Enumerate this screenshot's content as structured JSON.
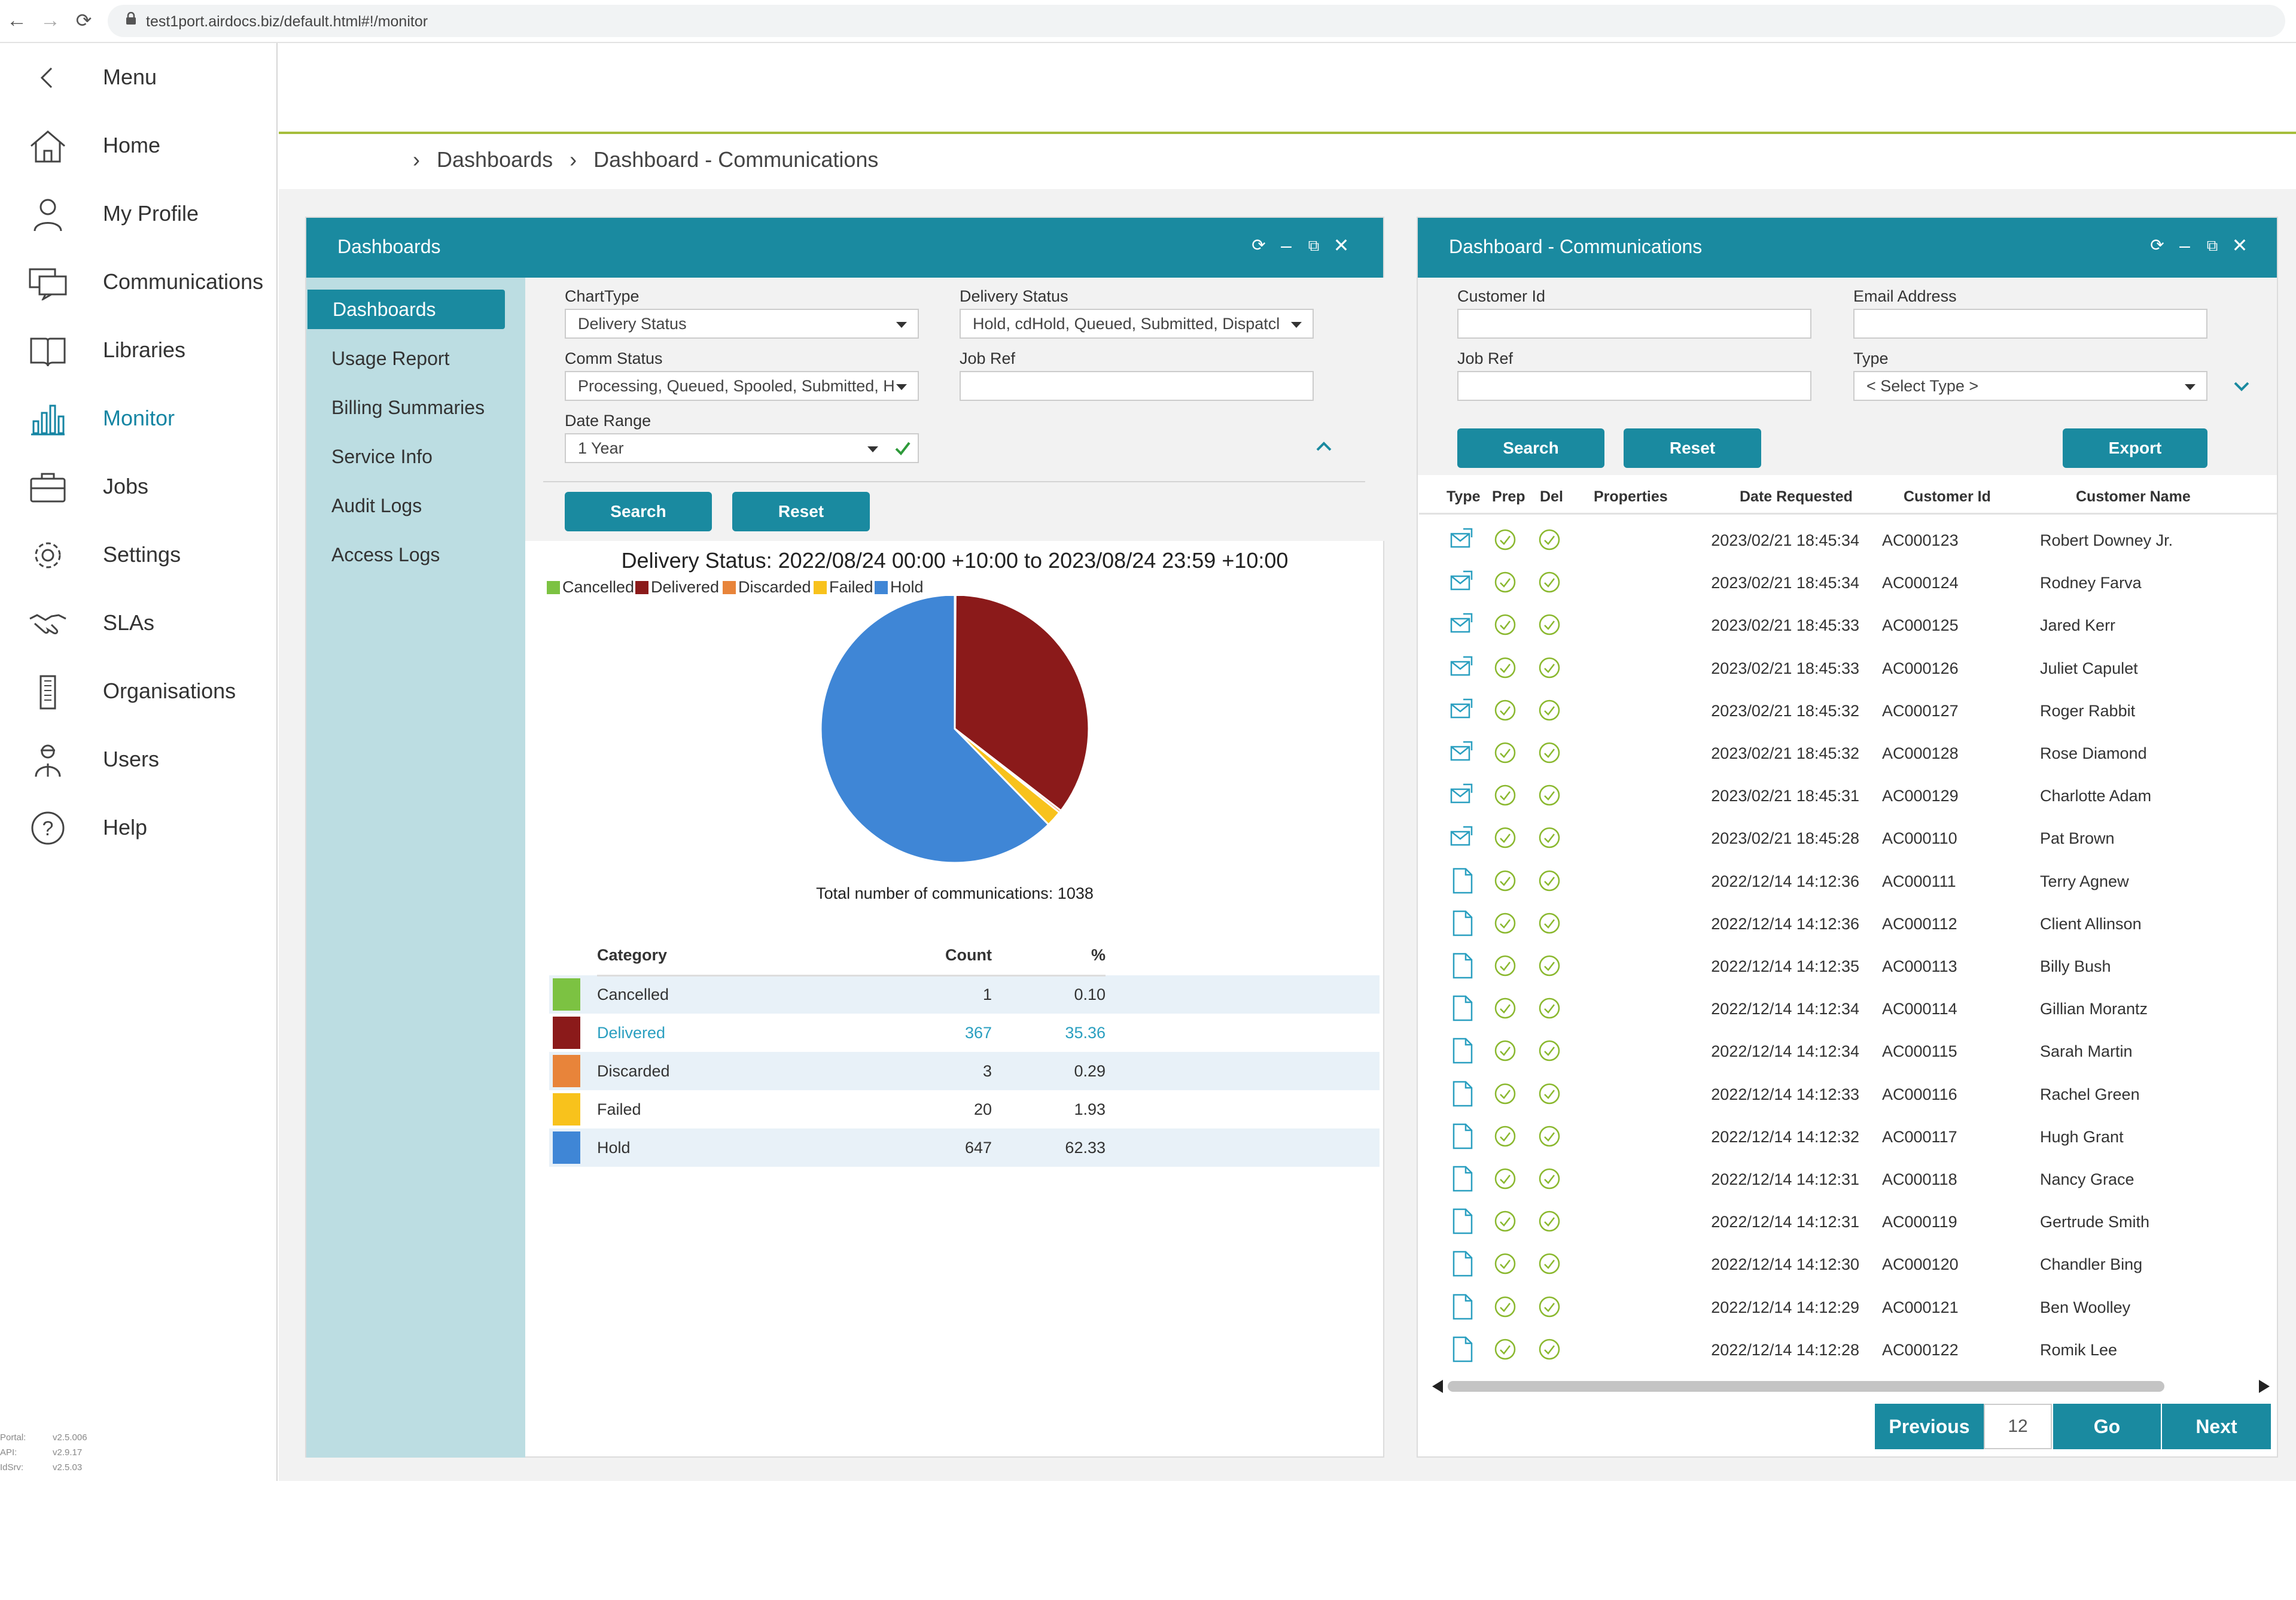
{
  "browser": {
    "url": "test1port.airdocs.biz/default.html#!/monitor"
  },
  "sidebar": {
    "menu_label": "Menu",
    "items": [
      {
        "label": "Home",
        "icon": "home-icon"
      },
      {
        "label": "My Profile",
        "icon": "profile-icon"
      },
      {
        "label": "Communications",
        "icon": "communications-icon"
      },
      {
        "label": "Libraries",
        "icon": "libraries-icon"
      },
      {
        "label": "Monitor",
        "icon": "monitor-icon",
        "active": true
      },
      {
        "label": "Jobs",
        "icon": "jobs-icon"
      },
      {
        "label": "Settings",
        "icon": "gear-icon"
      },
      {
        "label": "SLAs",
        "icon": "handshake-icon"
      },
      {
        "label": "Organisations",
        "icon": "building-icon"
      },
      {
        "label": "Users",
        "icon": "users-icon"
      },
      {
        "label": "Help",
        "icon": "help-icon"
      }
    ],
    "versions": [
      {
        "name": "Portal:",
        "value": "v2.5.006"
      },
      {
        "name": "API:",
        "value": "v2.9.17"
      },
      {
        "name": "IdSrv:",
        "value": "v2.5.03"
      }
    ]
  },
  "breadcrumb": {
    "items": [
      "Dashboards",
      "Dashboard - Communications"
    ]
  },
  "left_panel": {
    "title": "Dashboards",
    "subnav": [
      "Dashboards",
      "Usage Report",
      "Billing Summaries",
      "Service Info",
      "Audit Logs",
      "Access Logs"
    ],
    "filters": {
      "chart_type_label": "ChartType",
      "chart_type_value": "Delivery Status",
      "delivery_status_label": "Delivery Status",
      "delivery_status_value": "Hold, cdHold, Queued, Submitted, Dispatcl",
      "comm_status_label": "Comm Status",
      "comm_status_value": "Processing, Queued, Spooled, Submitted, H",
      "job_ref_label": "Job Ref",
      "job_ref_value": "",
      "date_range_label": "Date Range",
      "date_range_value": "1 Year"
    },
    "search_label": "Search",
    "reset_label": "Reset",
    "total_label": "Total number of communications: 1038",
    "table_headers": {
      "category": "Category",
      "count": "Count",
      "percent": "%"
    }
  },
  "chart_data": {
    "type": "pie",
    "title": "Delivery Status: 2022/08/24 00:00 +10:00 to 2023/08/24 23:59 +10:00",
    "legend_position": "top-left",
    "categories": [
      "Cancelled",
      "Delivered",
      "Discarded",
      "Failed",
      "Hold"
    ],
    "values": [
      1,
      367,
      3,
      20,
      647
    ],
    "percentages": [
      "0.10",
      "35.36",
      "0.29",
      "1.93",
      "62.33"
    ],
    "colors": [
      "#7cc242",
      "#8b1a1a",
      "#e8843a",
      "#f8c21c",
      "#3f86d6"
    ],
    "total": 1038
  },
  "right_panel": {
    "title": "Dashboard - Communications",
    "customer_id_label": "Customer Id",
    "customer_id_value": "",
    "email_label": "Email Address",
    "email_value": "",
    "job_ref_label": "Job Ref",
    "job_ref_value": "",
    "type_label": "Type",
    "type_value": "< Select Type >",
    "search_label": "Search",
    "reset_label": "Reset",
    "export_label": "Export",
    "columns": [
      "Type",
      "Prep",
      "Del",
      "Properties",
      "Date Requested",
      "Customer Id",
      "Customer Name"
    ],
    "rows": [
      {
        "type": "email",
        "date": "2023/02/21 18:45:34",
        "id": "AC000123",
        "name": "Robert Downey Jr."
      },
      {
        "type": "email",
        "date": "2023/02/21 18:45:34",
        "id": "AC000124",
        "name": "Rodney Farva"
      },
      {
        "type": "email",
        "date": "2023/02/21 18:45:33",
        "id": "AC000125",
        "name": "Jared Kerr"
      },
      {
        "type": "email",
        "date": "2023/02/21 18:45:33",
        "id": "AC000126",
        "name": "Juliet Capulet"
      },
      {
        "type": "email",
        "date": "2023/02/21 18:45:32",
        "id": "AC000127",
        "name": "Roger Rabbit"
      },
      {
        "type": "email",
        "date": "2023/02/21 18:45:32",
        "id": "AC000128",
        "name": "Rose Diamond"
      },
      {
        "type": "email",
        "date": "2023/02/21 18:45:31",
        "id": "AC000129",
        "name": "Charlotte Adam"
      },
      {
        "type": "email",
        "date": "2023/02/21 18:45:28",
        "id": "AC000110",
        "name": "Pat Brown"
      },
      {
        "type": "document",
        "date": "2022/12/14 14:12:36",
        "id": "AC000111",
        "name": "Terry Agnew"
      },
      {
        "type": "document",
        "date": "2022/12/14 14:12:36",
        "id": "AC000112",
        "name": "Client Allinson"
      },
      {
        "type": "document",
        "date": "2022/12/14 14:12:35",
        "id": "AC000113",
        "name": "Billy Bush"
      },
      {
        "type": "document",
        "date": "2022/12/14 14:12:34",
        "id": "AC000114",
        "name": "Gillian Morantz"
      },
      {
        "type": "document",
        "date": "2022/12/14 14:12:34",
        "id": "AC000115",
        "name": "Sarah Martin"
      },
      {
        "type": "document",
        "date": "2022/12/14 14:12:33",
        "id": "AC000116",
        "name": "Rachel Green"
      },
      {
        "type": "document",
        "date": "2022/12/14 14:12:32",
        "id": "AC000117",
        "name": "Hugh Grant"
      },
      {
        "type": "document",
        "date": "2022/12/14 14:12:31",
        "id": "AC000118",
        "name": "Nancy Grace"
      },
      {
        "type": "document",
        "date": "2022/12/14 14:12:31",
        "id": "AC000119",
        "name": "Gertrude Smith"
      },
      {
        "type": "document",
        "date": "2022/12/14 14:12:30",
        "id": "AC000120",
        "name": "Chandler Bing"
      },
      {
        "type": "document",
        "date": "2022/12/14 14:12:29",
        "id": "AC000121",
        "name": "Ben Woolley"
      },
      {
        "type": "document",
        "date": "2022/12/14 14:12:28",
        "id": "AC000122",
        "name": "Romik  Lee"
      }
    ],
    "pager": {
      "previous": "Previous",
      "page": "12",
      "go": "Go",
      "next": "Next"
    }
  },
  "colors": {
    "accent": "#1a8aa0",
    "subnav_bg": "#bcdde2",
    "header_rule": "#a6be3c",
    "check": "#8ab82e"
  }
}
